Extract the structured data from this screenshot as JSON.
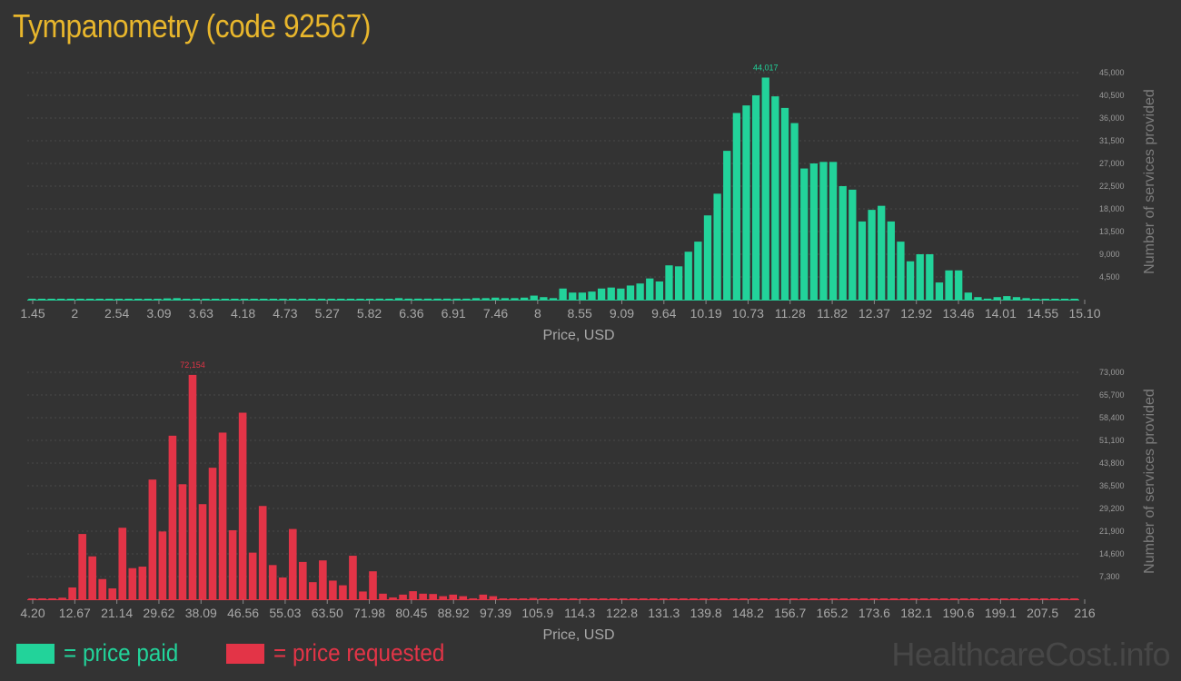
{
  "title": "Tympanometry (code 92567)",
  "legend": {
    "paid_label": "= price paid",
    "requested_label": "= price requested",
    "paid_color": "#22d39a",
    "requested_color": "#e33447"
  },
  "watermark": "HealthcareCost.info",
  "chart_data": [
    {
      "type": "bar",
      "name": "price paid",
      "color": "#22d39a",
      "xlabel": "Price, USD",
      "ylabel": "Number of services provided",
      "xlim": [
        1.45,
        15.1
      ],
      "ylim": [
        0,
        45000
      ],
      "x_tick_labels": [
        "1.45",
        "2",
        "2.54",
        "3.09",
        "3.63",
        "4.18",
        "4.73",
        "5.27",
        "5.82",
        "6.36",
        "6.91",
        "7.46",
        "8",
        "8.55",
        "9.09",
        "9.64",
        "10.19",
        "10.73",
        "11.28",
        "11.82",
        "12.37",
        "12.92",
        "13.46",
        "14.01",
        "14.55",
        "15.10"
      ],
      "y_tick_labels": [
        "4,500",
        "9,000",
        "13,500",
        "18,000",
        "22,500",
        "27,000",
        "31,500",
        "36,000",
        "40,500",
        "45,000"
      ],
      "grid": true,
      "peak_label": "44,017",
      "values": [
        120,
        0,
        80,
        0,
        0,
        150,
        0,
        0,
        0,
        0,
        0,
        0,
        100,
        0,
        250,
        300,
        100,
        0,
        0,
        0,
        0,
        0,
        0,
        0,
        0,
        0,
        0,
        0,
        0,
        0,
        100,
        0,
        0,
        100,
        0,
        100,
        200,
        100,
        300,
        200,
        200,
        200,
        200,
        200,
        200,
        200,
        300,
        300,
        400,
        300,
        300,
        400,
        800,
        500,
        300,
        2200,
        1400,
        1400,
        1600,
        2200,
        2400,
        2200,
        2800,
        3200,
        4200,
        3600,
        6800,
        6600,
        9500,
        11500,
        16700,
        21000,
        29500,
        37000,
        38500,
        40500,
        44017,
        40300,
        38000,
        35000,
        26000,
        27000,
        27300,
        27300,
        22500,
        21800,
        15500,
        17800,
        18600,
        15500,
        11500,
        7600,
        9000,
        9000,
        3400,
        5800,
        5800,
        1400,
        500,
        200,
        500,
        700,
        500,
        300,
        100,
        0,
        0,
        0,
        100
      ]
    },
    {
      "type": "bar",
      "name": "price requested",
      "color": "#e33447",
      "xlabel": "Price, USD",
      "ylabel": "Number of services provided",
      "xlim": [
        4.2,
        216
      ],
      "ylim": [
        0,
        73000
      ],
      "x_tick_labels": [
        "4.20",
        "12.67",
        "21.14",
        "29.62",
        "38.09",
        "46.56",
        "55.03",
        "63.50",
        "71.98",
        "80.45",
        "88.92",
        "97.39",
        "105.9",
        "114.3",
        "122.8",
        "131.3",
        "139.8",
        "148.2",
        "156.7",
        "165.2",
        "173.6",
        "182.1",
        "190.6",
        "199.1",
        "207.5",
        "216"
      ],
      "y_tick_labels": [
        "7,300",
        "14,600",
        "21,900",
        "29,200",
        "36,500",
        "43,800",
        "51,100",
        "58,400",
        "65,700",
        "73,000"
      ],
      "grid": true,
      "peak_label": "72,154",
      "values": [
        150,
        0,
        0,
        500,
        3800,
        21000,
        13800,
        6500,
        3500,
        23000,
        10000,
        10500,
        38500,
        21800,
        52600,
        37000,
        72154,
        30600,
        42300,
        53600,
        22200,
        60000,
        15000,
        30000,
        11000,
        7000,
        22600,
        12000,
        5500,
        12500,
        6000,
        4500,
        14000,
        2500,
        9000,
        1800,
        600,
        1500,
        2600,
        1800,
        1700,
        1000,
        1500,
        1000,
        300,
        1500,
        1000,
        200,
        0,
        0,
        400,
        0,
        0,
        0,
        300,
        0,
        200,
        0,
        0,
        0,
        0,
        0,
        0,
        0,
        0,
        0,
        0,
        0,
        0,
        0,
        0,
        0,
        0,
        0,
        0,
        0,
        0,
        200,
        0,
        0,
        0,
        0,
        0,
        300,
        0,
        0,
        0,
        0,
        0,
        0,
        0,
        0,
        0,
        0,
        0,
        0,
        0,
        0,
        0,
        0,
        0,
        0,
        0,
        0,
        0
      ]
    }
  ]
}
